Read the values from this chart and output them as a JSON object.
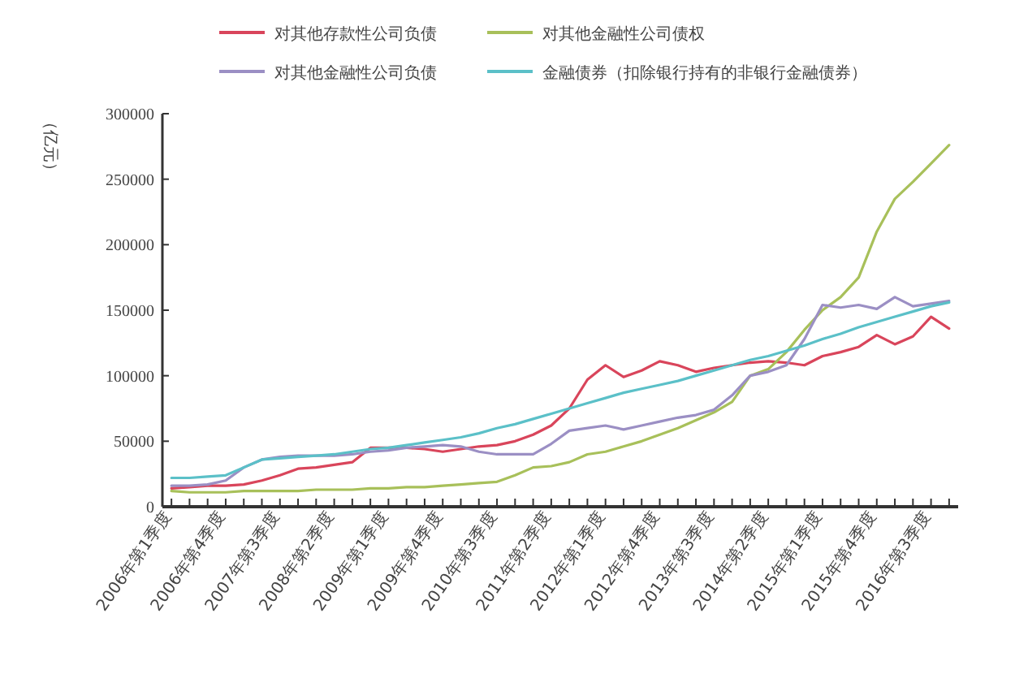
{
  "chart_data": {
    "type": "line",
    "ylabel": "（亿元）",
    "legend": "top",
    "categories": [
      "2006年第1季度",
      null,
      null,
      "2006年第4季度",
      null,
      null,
      "2007年第3季度",
      null,
      null,
      "2008年第2季度",
      null,
      null,
      "2009年第1季度",
      null,
      null,
      "2009年第4季度",
      null,
      null,
      "2010年第3季度",
      null,
      null,
      "2011年第2季度",
      null,
      null,
      "2012年第1季度",
      null,
      null,
      "2012年第4季度",
      null,
      null,
      "2013年第3季度",
      null,
      null,
      "2014年第2季度",
      null,
      null,
      "2015年第1季度",
      null,
      null,
      "2015年第4季度",
      null,
      null,
      "2016年第3季度",
      null
    ],
    "ylim": [
      0,
      300000
    ],
    "yticks": [
      0,
      50000,
      100000,
      150000,
      200000,
      250000,
      300000
    ],
    "series": [
      {
        "name": "对其他存款性公司负债",
        "color": "#d9455b",
        "values": [
          14000,
          15000,
          16000,
          16000,
          17000,
          20000,
          24000,
          29000,
          30000,
          32000,
          34000,
          45000,
          45000,
          45000,
          44000,
          42000,
          44000,
          46000,
          47000,
          50000,
          55000,
          62000,
          75000,
          97000,
          108000,
          99000,
          104000,
          111000,
          108000,
          103000,
          106000,
          108000,
          110000,
          111000,
          110000,
          108000,
          115000,
          118000,
          122000,
          131000,
          124000,
          130000,
          145000,
          136000
        ]
      },
      {
        "name": "对其他金融性公司债权",
        "color": "#a8c05a",
        "values": [
          12000,
          11000,
          11000,
          11000,
          12000,
          12000,
          12000,
          12000,
          13000,
          13000,
          13000,
          14000,
          14000,
          15000,
          15000,
          16000,
          17000,
          18000,
          19000,
          24000,
          30000,
          31000,
          34000,
          40000,
          42000,
          46000,
          50000,
          55000,
          60000,
          66000,
          72000,
          80000,
          100000,
          105000,
          118000,
          135000,
          150000,
          160000,
          175000,
          210000,
          235000,
          248000,
          262000,
          276000
        ]
      },
      {
        "name": "对其他金融性公司负债",
        "color": "#9b8fc4",
        "values": [
          16000,
          16000,
          17000,
          20000,
          30000,
          36000,
          38000,
          39000,
          39000,
          39000,
          40000,
          42000,
          43000,
          45000,
          46000,
          47000,
          46000,
          42000,
          40000,
          40000,
          40000,
          48000,
          58000,
          60000,
          62000,
          59000,
          62000,
          65000,
          68000,
          70000,
          74000,
          85000,
          100000,
          103000,
          108000,
          128000,
          154000,
          152000,
          154000,
          151000,
          160000,
          153000,
          155000,
          157000
        ]
      },
      {
        "name": "金融债券（扣除银行持有的非银行金融债券）",
        "color": "#5bc0c8",
        "values": [
          22000,
          22000,
          23000,
          24000,
          30000,
          36000,
          37000,
          38000,
          39000,
          40000,
          42000,
          44000,
          45000,
          47000,
          49000,
          51000,
          53000,
          56000,
          60000,
          63000,
          67000,
          71000,
          75000,
          79000,
          83000,
          87000,
          90000,
          93000,
          96000,
          100000,
          104000,
          108000,
          112000,
          115000,
          119000,
          123000,
          128000,
          132000,
          137000,
          141000,
          145000,
          149000,
          153000,
          156000
        ]
      }
    ]
  }
}
